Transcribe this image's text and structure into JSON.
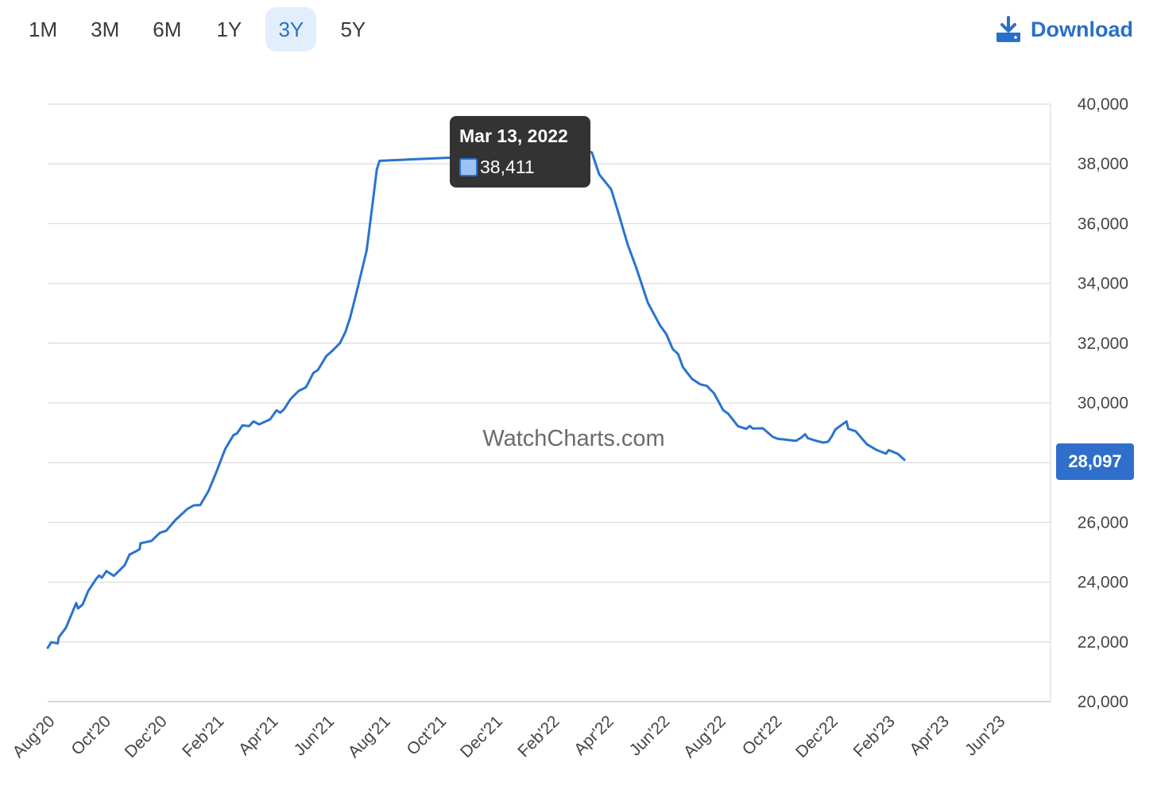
{
  "range_selector": {
    "options": [
      "1M",
      "3M",
      "6M",
      "1Y",
      "3Y",
      "5Y"
    ],
    "selected": "3Y"
  },
  "download": {
    "label": "Download",
    "icon": "download-icon"
  },
  "watermark": "WatchCharts.com",
  "tooltip": {
    "date": "Mar 13, 2022",
    "value": "38,411",
    "point": [
      "2022-03-13",
      38411
    ]
  },
  "last_value_label": "28,097",
  "colors": {
    "line": "#2a73d0",
    "accent": "#2a6fc9",
    "active_bg": "#e3eefc",
    "tooltip_bg": "#333333",
    "last_label_bg": "#2f6fcb",
    "grid": "#dedede"
  },
  "chart_data": {
    "type": "line",
    "title": "",
    "xlabel": "",
    "ylabel": "",
    "ylim": [
      20000,
      40000
    ],
    "y_ticks": [
      20000,
      22000,
      24000,
      26000,
      28000,
      30000,
      32000,
      34000,
      36000,
      38000,
      40000
    ],
    "y_tick_labels": [
      "20,000",
      "22,000",
      "24,000",
      "26,000",
      "28,000",
      "30,000",
      "32,000",
      "34,000",
      "36,000",
      "38,000",
      "40,000"
    ],
    "y_axis_side": "right",
    "grid": true,
    "legend": "none",
    "x_ticks": [
      {
        "label": "Aug'20",
        "date": "2020-08-01"
      },
      {
        "label": "Oct'20",
        "date": "2020-10-01"
      },
      {
        "label": "Dec'20",
        "date": "2020-12-01"
      },
      {
        "label": "Feb'21",
        "date": "2021-02-01"
      },
      {
        "label": "Apr'21",
        "date": "2021-04-01"
      },
      {
        "label": "Jun'21",
        "date": "2021-06-01"
      },
      {
        "label": "Aug'21",
        "date": "2021-08-01"
      },
      {
        "label": "Oct'21",
        "date": "2021-10-01"
      },
      {
        "label": "Dec'21",
        "date": "2021-12-01"
      },
      {
        "label": "Feb'22",
        "date": "2022-02-01"
      },
      {
        "label": "Apr'22",
        "date": "2022-04-01"
      },
      {
        "label": "Jun'22",
        "date": "2022-06-01"
      },
      {
        "label": "Aug'22",
        "date": "2022-08-01"
      },
      {
        "label": "Oct'22",
        "date": "2022-10-01"
      },
      {
        "label": "Dec'22",
        "date": "2022-12-01"
      },
      {
        "label": "Feb'23",
        "date": "2023-02-01"
      },
      {
        "label": "Apr'23",
        "date": "2023-04-01"
      },
      {
        "label": "Jun'23",
        "date": "2023-06-01"
      }
    ],
    "x_range": [
      "2020-08-01",
      "2023-07-28"
    ],
    "series": [
      {
        "points": [
          [
            "2020-08-01",
            21800
          ],
          [
            "2020-08-05",
            21990
          ],
          [
            "2020-08-12",
            21950
          ],
          [
            "2020-08-13",
            22150
          ],
          [
            "2020-08-21",
            22480
          ],
          [
            "2020-09-01",
            23300
          ],
          [
            "2020-09-03",
            23120
          ],
          [
            "2020-09-08",
            23250
          ],
          [
            "2020-09-14",
            23700
          ],
          [
            "2020-09-23",
            24120
          ],
          [
            "2020-09-26",
            24220
          ],
          [
            "2020-09-29",
            24150
          ],
          [
            "2020-10-04",
            24370
          ],
          [
            "2020-10-12",
            24210
          ],
          [
            "2020-10-19",
            24420
          ],
          [
            "2020-10-24",
            24580
          ],
          [
            "2020-10-29",
            24920
          ],
          [
            "2020-11-05",
            25030
          ],
          [
            "2020-11-09",
            25100
          ],
          [
            "2020-11-10",
            25300
          ],
          [
            "2020-11-22",
            25380
          ],
          [
            "2020-12-01",
            25650
          ],
          [
            "2020-12-08",
            25720
          ],
          [
            "2020-12-18",
            26080
          ],
          [
            "2020-12-31",
            26450
          ],
          [
            "2021-01-07",
            26570
          ],
          [
            "2021-01-14",
            26580
          ],
          [
            "2021-01-23",
            27050
          ],
          [
            "2021-01-31",
            27650
          ],
          [
            "2021-02-10",
            28450
          ],
          [
            "2021-02-19",
            28920
          ],
          [
            "2021-02-23",
            28980
          ],
          [
            "2021-03-01",
            29250
          ],
          [
            "2021-03-08",
            29220
          ],
          [
            "2021-03-13",
            29380
          ],
          [
            "2021-03-19",
            29280
          ],
          [
            "2021-03-31",
            29450
          ],
          [
            "2021-04-07",
            29750
          ],
          [
            "2021-04-11",
            29670
          ],
          [
            "2021-04-15",
            29780
          ],
          [
            "2021-04-22",
            30120
          ],
          [
            "2021-05-01",
            30400
          ],
          [
            "2021-05-09",
            30520
          ],
          [
            "2021-05-17",
            31000
          ],
          [
            "2021-05-22",
            31100
          ],
          [
            "2021-05-31",
            31560
          ],
          [
            "2021-06-06",
            31720
          ],
          [
            "2021-06-15",
            32000
          ],
          [
            "2021-06-21",
            32380
          ],
          [
            "2021-06-26",
            32850
          ],
          [
            "2021-07-03",
            33700
          ],
          [
            "2021-07-14",
            35100
          ],
          [
            "2021-07-21",
            36800
          ],
          [
            "2021-07-25",
            37800
          ],
          [
            "2021-07-28",
            38100
          ],
          [
            "2022-03-13",
            38411
          ],
          [
            "2022-03-16",
            38380
          ],
          [
            "2022-03-24",
            37650
          ],
          [
            "2022-04-06",
            37150
          ],
          [
            "2022-04-14",
            36350
          ],
          [
            "2022-04-24",
            35300
          ],
          [
            "2022-05-03",
            34550
          ],
          [
            "2022-05-16",
            33350
          ],
          [
            "2022-05-29",
            32600
          ],
          [
            "2022-06-05",
            32300
          ],
          [
            "2022-06-12",
            31800
          ],
          [
            "2022-06-18",
            31630
          ],
          [
            "2022-06-23",
            31200
          ],
          [
            "2022-07-03",
            30800
          ],
          [
            "2022-07-12",
            30620
          ],
          [
            "2022-07-19",
            30570
          ],
          [
            "2022-07-27",
            30320
          ],
          [
            "2022-08-06",
            29750
          ],
          [
            "2022-08-11",
            29650
          ],
          [
            "2022-08-22",
            29220
          ],
          [
            "2022-08-31",
            29130
          ],
          [
            "2022-09-04",
            29230
          ],
          [
            "2022-09-07",
            29140
          ],
          [
            "2022-09-18",
            29150
          ],
          [
            "2022-09-29",
            28860
          ],
          [
            "2022-10-04",
            28800
          ],
          [
            "2022-10-24",
            28730
          ],
          [
            "2022-10-30",
            28840
          ],
          [
            "2022-11-03",
            28950
          ],
          [
            "2022-11-06",
            28820
          ],
          [
            "2022-11-16",
            28720
          ],
          [
            "2022-11-23",
            28670
          ],
          [
            "2022-11-28",
            28700
          ],
          [
            "2022-12-02",
            28880
          ],
          [
            "2022-12-06",
            29110
          ],
          [
            "2022-12-18",
            29380
          ],
          [
            "2022-12-20",
            29130
          ],
          [
            "2022-12-28",
            29050
          ],
          [
            "2023-01-09",
            28620
          ],
          [
            "2023-01-20",
            28420
          ],
          [
            "2023-01-30",
            28300
          ],
          [
            "2023-02-02",
            28420
          ],
          [
            "2023-02-12",
            28290
          ],
          [
            "2023-02-19",
            28097
          ]
        ]
      }
    ]
  }
}
